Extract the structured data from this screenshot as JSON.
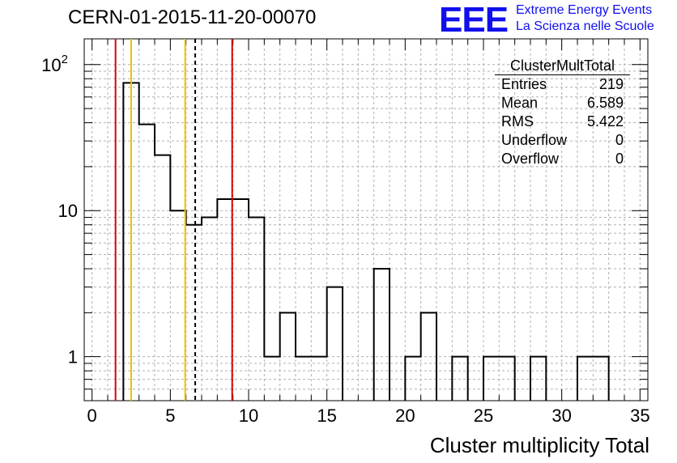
{
  "header": {
    "run_title": "CERN-01-2015-11-20-00070",
    "logo_text": "EEE",
    "logo_line1": "Extreme Energy Events",
    "logo_line2": "La Scienza nelle Scuole"
  },
  "stats": {
    "title": "ClusterMultTotal",
    "rows": [
      {
        "label": "Entries",
        "value": "219"
      },
      {
        "label": "Mean",
        "value": "6.589"
      },
      {
        "label": "RMS",
        "value": "5.422"
      },
      {
        "label": "Underflow",
        "value": "0"
      },
      {
        "label": "Overflow",
        "value": "0"
      }
    ]
  },
  "chart_data": {
    "type": "histogram",
    "xlabel": "Cluster multiplicity Total",
    "ylabel": "",
    "xlim": [
      -0.5,
      35.5
    ],
    "ylim": [
      0.5,
      150
    ],
    "yscale": "log",
    "grid": true,
    "xticks": [
      0,
      5,
      10,
      15,
      20,
      25,
      30,
      35
    ],
    "yticks": [
      {
        "value": 1,
        "label": "1"
      },
      {
        "value": 10,
        "label": "10"
      },
      {
        "value": 100,
        "label": "10",
        "sup": "2"
      }
    ],
    "bin_width": 1,
    "bins": [
      {
        "x": 2.5,
        "count": 75
      },
      {
        "x": 3.5,
        "count": 39
      },
      {
        "x": 4.5,
        "count": 24
      },
      {
        "x": 5.5,
        "count": 10
      },
      {
        "x": 6.5,
        "count": 8
      },
      {
        "x": 7.5,
        "count": 9
      },
      {
        "x": 8.5,
        "count": 12
      },
      {
        "x": 9.5,
        "count": 12
      },
      {
        "x": 10.5,
        "count": 9
      },
      {
        "x": 11.5,
        "count": 1
      },
      {
        "x": 12.5,
        "count": 2
      },
      {
        "x": 13.5,
        "count": 1
      },
      {
        "x": 14.5,
        "count": 1
      },
      {
        "x": 15.5,
        "count": 3
      },
      {
        "x": 18.5,
        "count": 4
      },
      {
        "x": 20.5,
        "count": 1
      },
      {
        "x": 21.5,
        "count": 2
      },
      {
        "x": 23.5,
        "count": 1
      },
      {
        "x": 25.5,
        "count": 1
      },
      {
        "x": 26.5,
        "count": 1
      },
      {
        "x": 28.5,
        "count": 1
      },
      {
        "x": 31.5,
        "count": 1
      },
      {
        "x": 32.5,
        "count": 1
      }
    ],
    "vertical_markers": [
      {
        "x": 1.5,
        "color": "#dd0000",
        "style": "solid"
      },
      {
        "x": 2.5,
        "color": "#f0c000",
        "style": "solid"
      },
      {
        "x": 5.95,
        "color": "#f0c000",
        "style": "solid"
      },
      {
        "x": 6.589,
        "color": "#000000",
        "style": "dashed"
      },
      {
        "x": 8.95,
        "color": "#dd0000",
        "style": "solid"
      }
    ]
  }
}
